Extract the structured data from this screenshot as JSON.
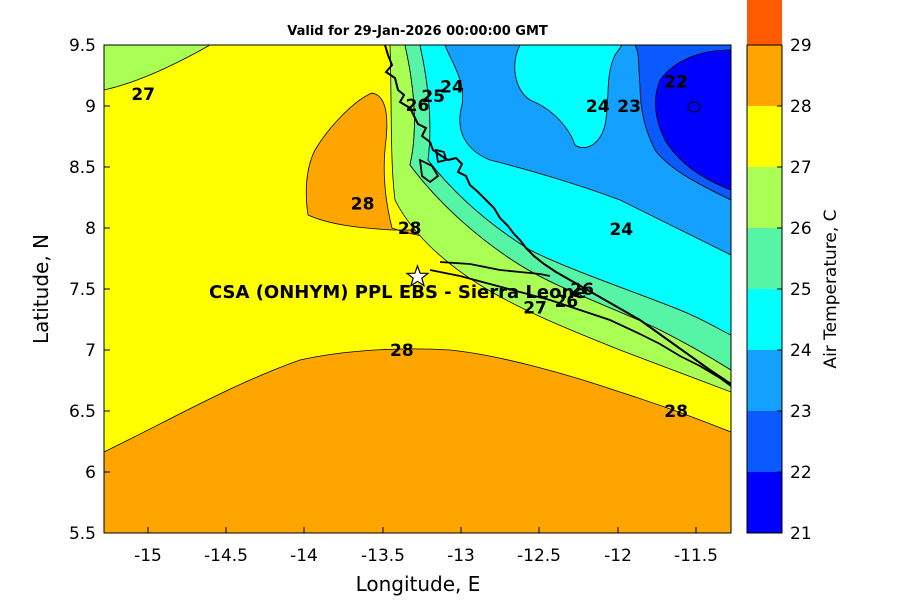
{
  "title": "Valid for 29-Jan-2026 00:00:00 GMT",
  "site_label": "CSA (ONHYM) PPL EBS  - Sierra Leone",
  "chart_data": {
    "type": "heatmap",
    "subtype": "filled-contour map",
    "title": "Valid for 29-Jan-2026 00:00:00 GMT",
    "xlabel": "Longitude, E",
    "ylabel": "Latitude, N",
    "xlim": [
      -15.25,
      -11.25
    ],
    "ylim": [
      5.5,
      9.5
    ],
    "xticks": [
      "-15",
      "-14.5",
      "-14",
      "-13.5",
      "-13",
      "-12.5",
      "-12",
      "-11.5"
    ],
    "yticks": [
      "5.5",
      "6",
      "6.5",
      "7",
      "7.5",
      "8",
      "8.5",
      "9",
      "9.5"
    ],
    "colorbar": {
      "label": "Air Temperature, C",
      "levels": [
        21,
        22,
        23,
        24,
        25,
        26,
        27,
        28,
        29
      ],
      "colors": [
        "#0000ff",
        "#0a5aff",
        "#14a0ff",
        "#00ffff",
        "#55f5a5",
        "#aaff55",
        "#ffff00",
        "#ffa500",
        "#ff5a00"
      ]
    },
    "contour_labels": [
      {
        "text": "27",
        "lon": -15.0,
        "lat": 9.1
      },
      {
        "text": "28",
        "lon": -13.6,
        "lat": 8.2
      },
      {
        "text": "28",
        "lon": -13.3,
        "lat": 8.0
      },
      {
        "text": "28",
        "lon": -13.35,
        "lat": 7.0
      },
      {
        "text": "28",
        "lon": -11.6,
        "lat": 6.5
      },
      {
        "text": "24",
        "lon": -12.1,
        "lat": 9.0
      },
      {
        "text": "23",
        "lon": -11.9,
        "lat": 9.0
      },
      {
        "text": "22",
        "lon": -11.6,
        "lat": 9.2
      },
      {
        "text": "24",
        "lon": -11.95,
        "lat": 7.99
      },
      {
        "text": "24",
        "lon": -13.03,
        "lat": 9.16
      },
      {
        "text": "25",
        "lon": -13.15,
        "lat": 9.08
      },
      {
        "text": "26",
        "lon": -13.25,
        "lat": 9.01
      },
      {
        "text": "27",
        "lon": -12.5,
        "lat": 7.35
      },
      {
        "text": "26",
        "lon": -12.3,
        "lat": 7.4
      },
      {
        "text": "26",
        "lon": -12.2,
        "lat": 7.5
      }
    ],
    "marker": {
      "symbol": "star",
      "lon": -13.25,
      "lat": 7.6,
      "label": "CSA (ONHYM) PPL EBS  - Sierra Leone"
    }
  }
}
